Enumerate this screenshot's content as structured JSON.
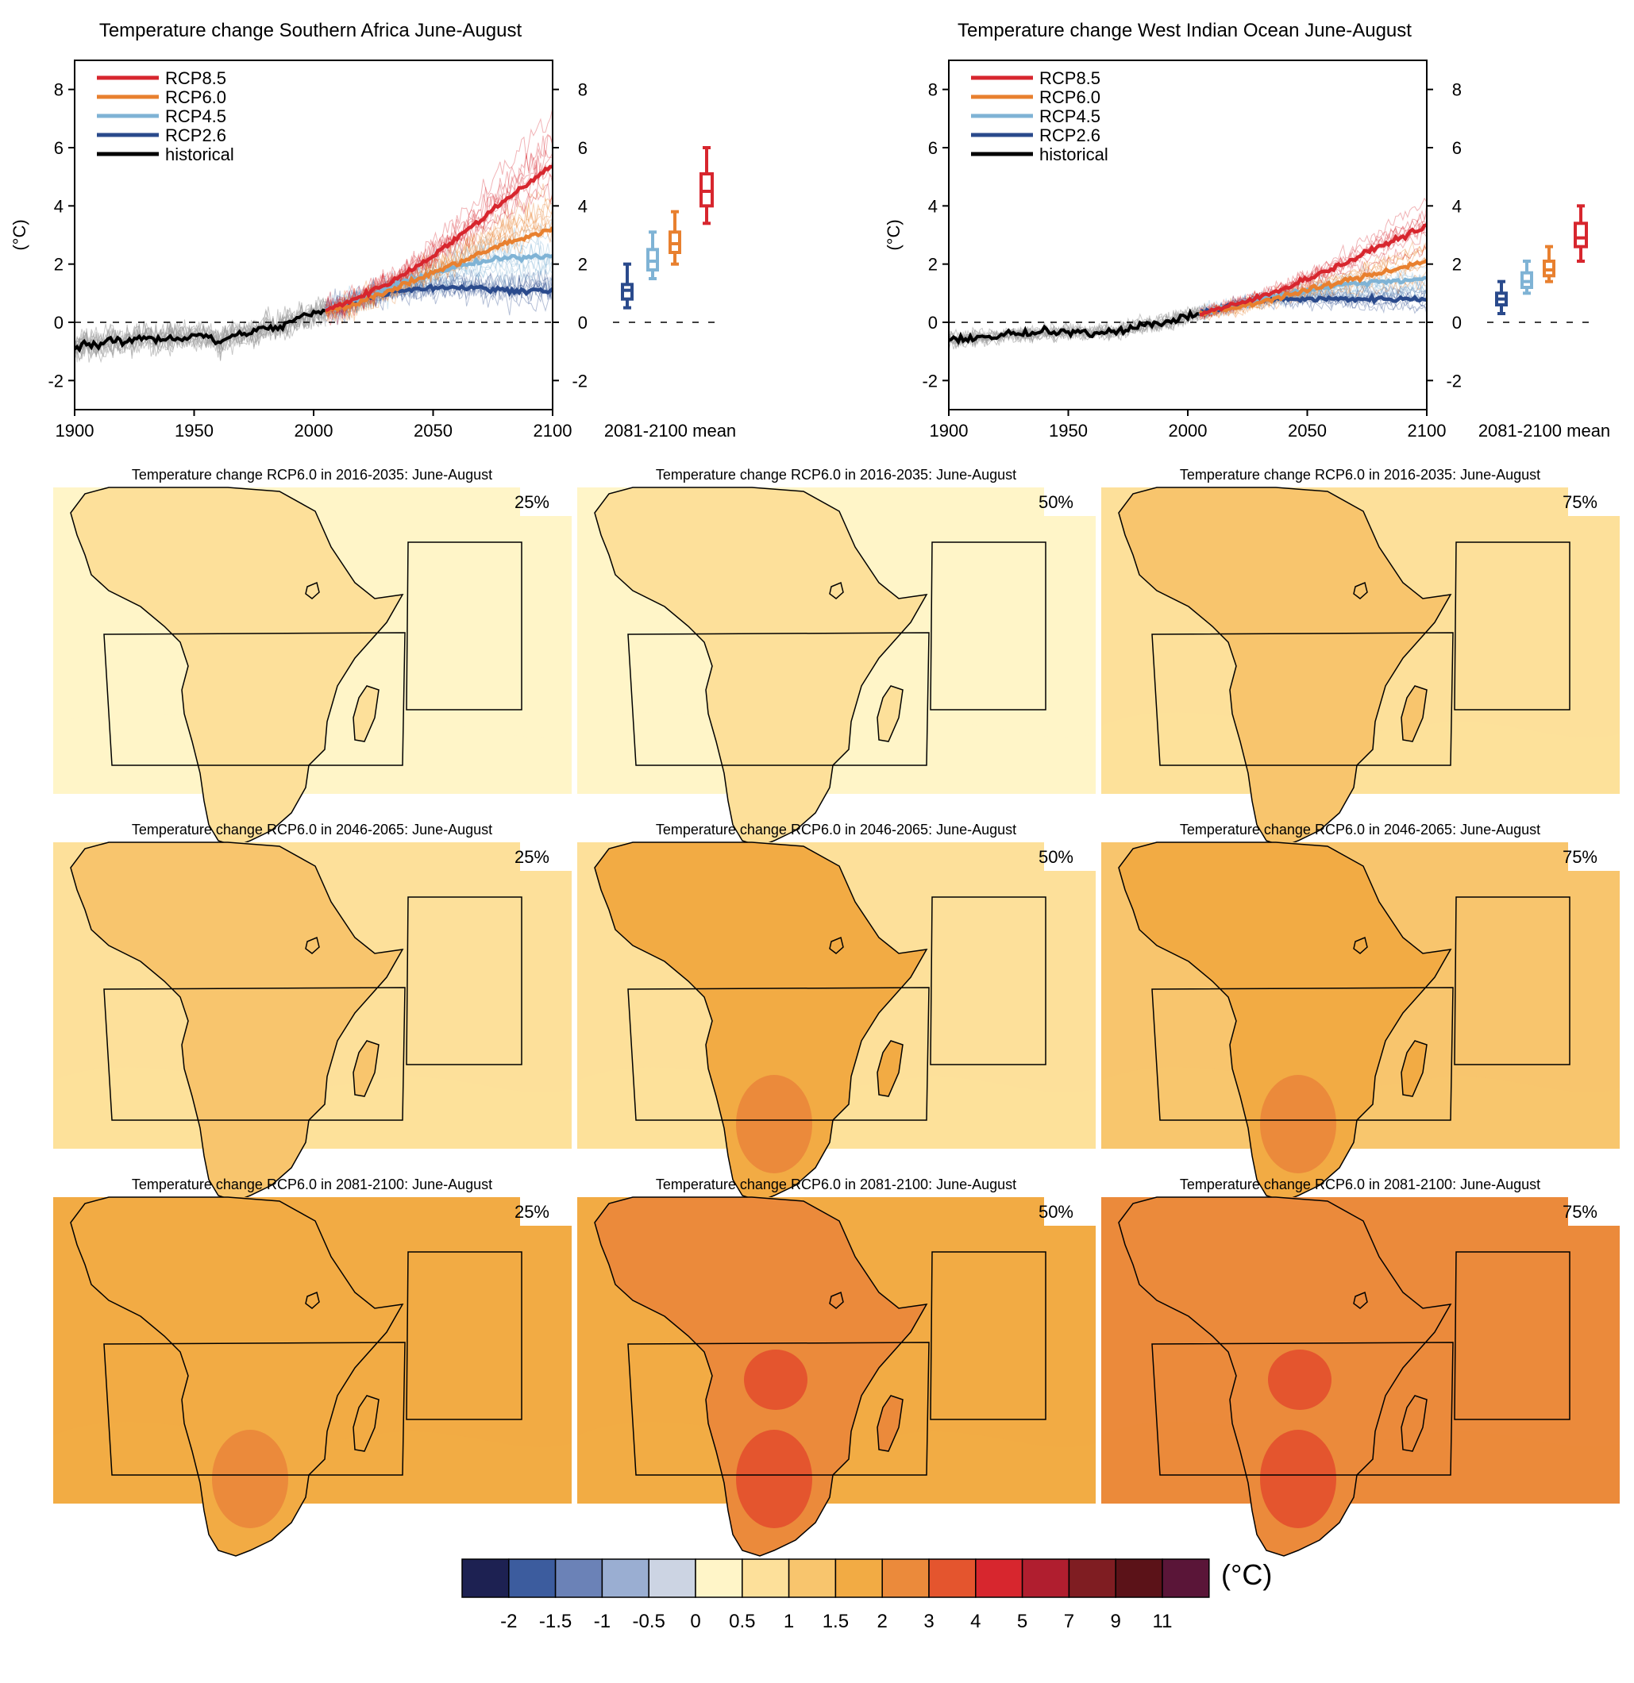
{
  "colors": {
    "rcp85": "#d7262e",
    "rcp60": "#e8802f",
    "rcp45": "#7fb3d5",
    "rcp26": "#2a4a8c",
    "historical": "#000000",
    "hist_spread": "#9a9a9a",
    "colorbar": [
      "#1d2152",
      "#3c5c9e",
      "#6b82b7",
      "#9aaed2",
      "#ccd4e3",
      "#fff5c8",
      "#fde09a",
      "#f8c56d",
      "#f2ab44",
      "#eb8a3b",
      "#e4552e",
      "#d7262e",
      "#b01e2f",
      "#7f1d22",
      "#5b1218",
      "#5a1538"
    ]
  },
  "chart_data": [
    {
      "id": "southern-africa",
      "type": "line",
      "title": "Temperature change Southern Africa June-August",
      "ylabel": "(°C)",
      "xlim": [
        1900,
        2100
      ],
      "ylim": [
        -3,
        9
      ],
      "xticks": [
        1900,
        1950,
        2000,
        2050,
        2100
      ],
      "yticks": [
        -2,
        0,
        2,
        4,
        6,
        8
      ],
      "legend": [
        "RCP8.5",
        "RCP6.0",
        "RCP4.5",
        "RCP2.6",
        "historical"
      ],
      "series": [
        {
          "name": "historical",
          "x": [
            1900,
            1905,
            1910,
            1915,
            1920,
            1925,
            1930,
            1935,
            1940,
            1945,
            1950,
            1955,
            1960,
            1965,
            1970,
            1975,
            1980,
            1985,
            1990,
            1995,
            2000,
            2005
          ],
          "values": [
            -0.9,
            -0.7,
            -0.8,
            -0.6,
            -0.7,
            -0.6,
            -0.5,
            -0.6,
            -0.5,
            -0.6,
            -0.4,
            -0.5,
            -0.7,
            -0.5,
            -0.4,
            -0.3,
            -0.2,
            -0.2,
            0.0,
            0.2,
            0.3,
            0.4
          ]
        },
        {
          "name": "RCP8.5",
          "x": [
            2005,
            2020,
            2035,
            2050,
            2065,
            2080,
            2100
          ],
          "values": [
            0.4,
            0.9,
            1.5,
            2.3,
            3.2,
            4.2,
            5.4
          ]
        },
        {
          "name": "RCP6.0",
          "x": [
            2005,
            2020,
            2035,
            2050,
            2065,
            2080,
            2100
          ],
          "values": [
            0.4,
            0.7,
            1.2,
            1.7,
            2.2,
            2.7,
            3.2
          ]
        },
        {
          "name": "RCP4.5",
          "x": [
            2005,
            2020,
            2035,
            2050,
            2065,
            2080,
            2100
          ],
          "values": [
            0.4,
            0.8,
            1.3,
            1.7,
            2.0,
            2.2,
            2.3
          ]
        },
        {
          "name": "RCP2.6",
          "x": [
            2005,
            2020,
            2035,
            2050,
            2065,
            2080,
            2100
          ],
          "values": [
            0.4,
            0.8,
            1.1,
            1.2,
            1.2,
            1.1,
            1.1
          ]
        }
      ],
      "mean_2081_2100": {
        "label": "2081-2100 mean",
        "boxes": [
          {
            "name": "RCP2.6",
            "min": 0.5,
            "q1": 0.8,
            "median": 1.1,
            "q3": 1.3,
            "max": 2.0
          },
          {
            "name": "RCP4.5",
            "min": 1.5,
            "q1": 1.8,
            "median": 2.1,
            "q3": 2.5,
            "max": 3.1
          },
          {
            "name": "RCP6.0",
            "min": 2.0,
            "q1": 2.4,
            "median": 2.7,
            "q3": 3.1,
            "max": 3.8
          },
          {
            "name": "RCP8.5",
            "min": 3.4,
            "q1": 4.0,
            "median": 4.5,
            "q3": 5.1,
            "max": 6.0
          }
        ]
      }
    },
    {
      "id": "west-indian-ocean",
      "type": "line",
      "title": "Temperature change West Indian Ocean June-August",
      "ylabel": "(°C)",
      "xlim": [
        1900,
        2100
      ],
      "ylim": [
        -3,
        9
      ],
      "xticks": [
        1900,
        1950,
        2000,
        2050,
        2100
      ],
      "yticks": [
        -2,
        0,
        2,
        4,
        6,
        8
      ],
      "legend": [
        "RCP8.5",
        "RCP6.0",
        "RCP4.5",
        "RCP2.6",
        "historical"
      ],
      "series": [
        {
          "name": "historical",
          "x": [
            1900,
            1905,
            1910,
            1915,
            1920,
            1925,
            1930,
            1935,
            1940,
            1945,
            1950,
            1955,
            1960,
            1965,
            1970,
            1975,
            1980,
            1985,
            1990,
            1995,
            2000,
            2005
          ],
          "values": [
            -0.6,
            -0.6,
            -0.5,
            -0.5,
            -0.5,
            -0.4,
            -0.4,
            -0.4,
            -0.3,
            -0.4,
            -0.3,
            -0.3,
            -0.4,
            -0.3,
            -0.3,
            -0.2,
            -0.1,
            -0.1,
            0.0,
            0.1,
            0.2,
            0.3
          ]
        },
        {
          "name": "RCP8.5",
          "x": [
            2005,
            2020,
            2035,
            2050,
            2065,
            2080,
            2100
          ],
          "values": [
            0.3,
            0.6,
            1.0,
            1.5,
            2.0,
            2.6,
            3.3
          ]
        },
        {
          "name": "RCP6.0",
          "x": [
            2005,
            2020,
            2035,
            2050,
            2065,
            2080,
            2100
          ],
          "values": [
            0.3,
            0.5,
            0.8,
            1.1,
            1.4,
            1.7,
            2.1
          ]
        },
        {
          "name": "RCP4.5",
          "x": [
            2005,
            2020,
            2035,
            2050,
            2065,
            2080,
            2100
          ],
          "values": [
            0.3,
            0.6,
            0.9,
            1.1,
            1.3,
            1.4,
            1.5
          ]
        },
        {
          "name": "RCP2.6",
          "x": [
            2005,
            2020,
            2035,
            2050,
            2065,
            2080,
            2100
          ],
          "values": [
            0.3,
            0.6,
            0.8,
            0.8,
            0.8,
            0.8,
            0.8
          ]
        }
      ],
      "mean_2081_2100": {
        "label": "2081-2100 mean",
        "boxes": [
          {
            "name": "RCP2.6",
            "min": 0.3,
            "q1": 0.6,
            "median": 0.8,
            "q3": 1.0,
            "max": 1.4
          },
          {
            "name": "RCP4.5",
            "min": 1.0,
            "q1": 1.2,
            "median": 1.4,
            "q3": 1.7,
            "max": 2.1
          },
          {
            "name": "RCP6.0",
            "min": 1.4,
            "q1": 1.6,
            "median": 1.8,
            "q3": 2.1,
            "max": 2.6
          },
          {
            "name": "RCP8.5",
            "min": 2.1,
            "q1": 2.6,
            "median": 2.9,
            "q3": 3.4,
            "max": 4.0
          }
        ]
      }
    },
    {
      "id": "maps",
      "type": "heatmap",
      "panels": [
        {
          "title": "Temperature change RCP6.0 in 2016-2035: June-August",
          "percentile": "25%",
          "sea_level": 0.5,
          "land_level": 1
        },
        {
          "title": "Temperature change RCP6.0 in 2016-2035: June-August",
          "percentile": "50%",
          "sea_level": 0.5,
          "land_level": 1
        },
        {
          "title": "Temperature change RCP6.0 in 2016-2035: June-August",
          "percentile": "75%",
          "sea_level": 1,
          "land_level": 1.5
        },
        {
          "title": "Temperature change RCP6.0 in 2046-2065: June-August",
          "percentile": "25%",
          "sea_level": 1,
          "land_level": 1.5
        },
        {
          "title": "Temperature change RCP6.0 in 2046-2065: June-August",
          "percentile": "50%",
          "sea_level": 1,
          "land_level": 2
        },
        {
          "title": "Temperature change RCP6.0 in 2046-2065: June-August",
          "percentile": "75%",
          "sea_level": 1.5,
          "land_level": 2
        },
        {
          "title": "Temperature change RCP6.0 in 2081-2100: June-August",
          "percentile": "25%",
          "sea_level": 2,
          "land_level": 2
        },
        {
          "title": "Temperature change RCP6.0 in 2081-2100: June-August",
          "percentile": "50%",
          "sea_level": 2,
          "land_level": 3
        },
        {
          "title": "Temperature change RCP6.0 in 2081-2100: June-August",
          "percentile": "75%",
          "sea_level": 3,
          "land_level": 3
        }
      ]
    },
    {
      "id": "colorbar",
      "type": "heatmap",
      "unit": "(°C)",
      "tick_labels": [
        "-2",
        "-1.5",
        "-1",
        "-0.5",
        "0",
        "0.5",
        "1",
        "1.5",
        "2",
        "3",
        "4",
        "5",
        "7",
        "9",
        "11"
      ]
    }
  ]
}
